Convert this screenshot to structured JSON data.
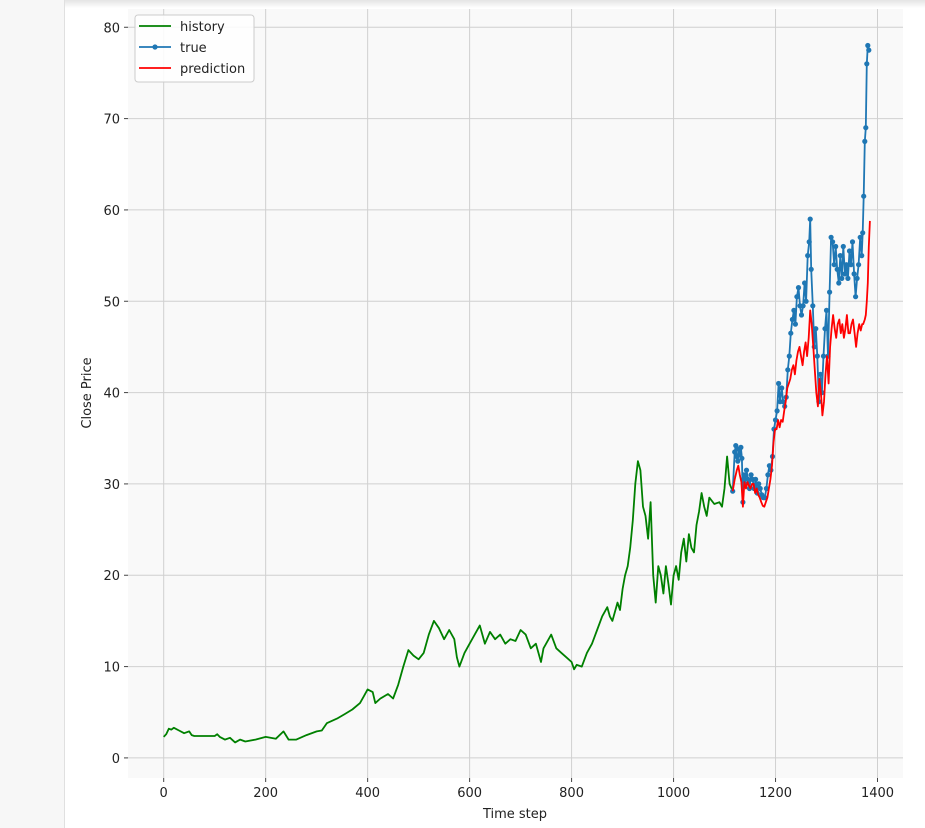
{
  "chart_data": {
    "type": "line",
    "xlabel": "Time step",
    "ylabel": "Close Price",
    "xlim": [
      -70,
      1450
    ],
    "ylim": [
      -2.2,
      82
    ],
    "xticks": [
      0,
      200,
      400,
      600,
      800,
      1000,
      1200,
      1400
    ],
    "yticks": [
      0,
      10,
      20,
      30,
      40,
      50,
      60,
      70,
      80
    ],
    "grid": true,
    "legend": "top-left",
    "series": [
      {
        "name": "history",
        "color": "#008000",
        "marker": "none",
        "points": [
          [
            0,
            2.3
          ],
          [
            5,
            2.6
          ],
          [
            10,
            3.2
          ],
          [
            15,
            3.1
          ],
          [
            20,
            3.3
          ],
          [
            30,
            3.0
          ],
          [
            40,
            2.7
          ],
          [
            50,
            2.9
          ],
          [
            55,
            2.5
          ],
          [
            60,
            2.4
          ],
          [
            80,
            2.4
          ],
          [
            100,
            2.4
          ],
          [
            105,
            2.6
          ],
          [
            110,
            2.3
          ],
          [
            120,
            2.0
          ],
          [
            130,
            2.2
          ],
          [
            140,
            1.7
          ],
          [
            150,
            2.0
          ],
          [
            160,
            1.8
          ],
          [
            180,
            2.0
          ],
          [
            200,
            2.3
          ],
          [
            220,
            2.1
          ],
          [
            235,
            2.9
          ],
          [
            245,
            2.0
          ],
          [
            260,
            2.0
          ],
          [
            280,
            2.5
          ],
          [
            300,
            2.9
          ],
          [
            310,
            3.0
          ],
          [
            320,
            3.8
          ],
          [
            340,
            4.3
          ],
          [
            355,
            4.8
          ],
          [
            370,
            5.3
          ],
          [
            385,
            6.0
          ],
          [
            392,
            6.7
          ],
          [
            400,
            7.5
          ],
          [
            410,
            7.2
          ],
          [
            415,
            6.0
          ],
          [
            425,
            6.5
          ],
          [
            440,
            7.0
          ],
          [
            450,
            6.5
          ],
          [
            460,
            8.0
          ],
          [
            470,
            10.0
          ],
          [
            480,
            11.8
          ],
          [
            490,
            11.2
          ],
          [
            500,
            10.8
          ],
          [
            510,
            11.5
          ],
          [
            520,
            13.5
          ],
          [
            530,
            15.0
          ],
          [
            540,
            14.2
          ],
          [
            550,
            13.0
          ],
          [
            560,
            14.0
          ],
          [
            570,
            13.0
          ],
          [
            575,
            11.0
          ],
          [
            580,
            10.0
          ],
          [
            590,
            11.5
          ],
          [
            600,
            12.5
          ],
          [
            610,
            13.5
          ],
          [
            620,
            14.5
          ],
          [
            630,
            12.5
          ],
          [
            640,
            13.8
          ],
          [
            650,
            13.0
          ],
          [
            660,
            13.5
          ],
          [
            670,
            12.5
          ],
          [
            680,
            13.0
          ],
          [
            690,
            12.8
          ],
          [
            700,
            14.0
          ],
          [
            710,
            13.5
          ],
          [
            720,
            12.0
          ],
          [
            730,
            12.5
          ],
          [
            740,
            10.5
          ],
          [
            745,
            12.0
          ],
          [
            750,
            12.5
          ],
          [
            760,
            13.5
          ],
          [
            770,
            12.0
          ],
          [
            780,
            11.5
          ],
          [
            790,
            11.0
          ],
          [
            800,
            10.5
          ],
          [
            805,
            9.7
          ],
          [
            810,
            10.2
          ],
          [
            820,
            10.0
          ],
          [
            830,
            11.5
          ],
          [
            840,
            12.5
          ],
          [
            850,
            14.0
          ],
          [
            860,
            15.5
          ],
          [
            870,
            16.5
          ],
          [
            875,
            15.5
          ],
          [
            880,
            15.0
          ],
          [
            890,
            17.0
          ],
          [
            895,
            16.2
          ],
          [
            900,
            18.5
          ],
          [
            905,
            20.0
          ],
          [
            910,
            21.0
          ],
          [
            915,
            23.0
          ],
          [
            920,
            26.0
          ],
          [
            925,
            30.0
          ],
          [
            930,
            32.5
          ],
          [
            935,
            31.5
          ],
          [
            940,
            27.5
          ],
          [
            945,
            26.5
          ],
          [
            950,
            24.0
          ],
          [
            955,
            28.0
          ],
          [
            960,
            20.0
          ],
          [
            965,
            17.0
          ],
          [
            970,
            21.0
          ],
          [
            975,
            20.0
          ],
          [
            980,
            18.0
          ],
          [
            985,
            21.0
          ],
          [
            990,
            19.0
          ],
          [
            995,
            16.8
          ],
          [
            1000,
            20.0
          ],
          [
            1005,
            21.0
          ],
          [
            1010,
            19.5
          ],
          [
            1015,
            22.5
          ],
          [
            1020,
            24.0
          ],
          [
            1025,
            21.5
          ],
          [
            1030,
            24.5
          ],
          [
            1035,
            23.0
          ],
          [
            1040,
            22.5
          ],
          [
            1045,
            25.5
          ],
          [
            1050,
            27.0
          ],
          [
            1055,
            29.0
          ],
          [
            1060,
            27.5
          ],
          [
            1065,
            26.5
          ],
          [
            1070,
            28.5
          ],
          [
            1080,
            27.8
          ],
          [
            1090,
            28.0
          ],
          [
            1095,
            27.5
          ],
          [
            1100,
            29.5
          ],
          [
            1105,
            33.0
          ],
          [
            1110,
            30.0
          ],
          [
            1116,
            29.2
          ]
        ]
      },
      {
        "name": "true",
        "color": "#1f77b4",
        "marker": "dot",
        "points": [
          [
            1116,
            29.2
          ],
          [
            1120,
            33.5
          ],
          [
            1122,
            34.2
          ],
          [
            1124,
            33.0
          ],
          [
            1126,
            32.5
          ],
          [
            1128,
            33.8
          ],
          [
            1130,
            33.2
          ],
          [
            1132,
            34.0
          ],
          [
            1134,
            32.8
          ],
          [
            1136,
            28.0
          ],
          [
            1138,
            31.0
          ],
          [
            1140,
            30.0
          ],
          [
            1143,
            31.5
          ],
          [
            1146,
            30.5
          ],
          [
            1149,
            29.5
          ],
          [
            1152,
            31.0
          ],
          [
            1155,
            30.5
          ],
          [
            1158,
            29.5
          ],
          [
            1161,
            30.5
          ],
          [
            1164,
            29.0
          ],
          [
            1167,
            30.0
          ],
          [
            1170,
            29.5
          ],
          [
            1173,
            28.8
          ],
          [
            1176,
            28.5
          ],
          [
            1179,
            28.5
          ],
          [
            1182,
            29.5
          ],
          [
            1185,
            31.0
          ],
          [
            1188,
            32.0
          ],
          [
            1191,
            31.5
          ],
          [
            1194,
            33.0
          ],
          [
            1197,
            36.0
          ],
          [
            1200,
            37.0
          ],
          [
            1203,
            38.0
          ],
          [
            1206,
            41.0
          ],
          [
            1209,
            39.0
          ],
          [
            1212,
            40.5
          ],
          [
            1215,
            39.0
          ],
          [
            1218,
            38.5
          ],
          [
            1221,
            39.5
          ],
          [
            1224,
            42.5
          ],
          [
            1227,
            44.0
          ],
          [
            1230,
            46.5
          ],
          [
            1233,
            48.0
          ],
          [
            1236,
            49.0
          ],
          [
            1239,
            47.5
          ],
          [
            1242,
            50.5
          ],
          [
            1245,
            51.5
          ],
          [
            1248,
            49.5
          ],
          [
            1251,
            48.5
          ],
          [
            1254,
            49.5
          ],
          [
            1257,
            52.0
          ],
          [
            1260,
            50.0
          ],
          [
            1263,
            55.0
          ],
          [
            1266,
            56.5
          ],
          [
            1268,
            59.0
          ],
          [
            1270,
            53.5
          ],
          [
            1273,
            49.5
          ],
          [
            1276,
            45.0
          ],
          [
            1279,
            47.0
          ],
          [
            1282,
            44.0
          ],
          [
            1285,
            39.0
          ],
          [
            1288,
            42.0
          ],
          [
            1291,
            40.0
          ],
          [
            1294,
            44.0
          ],
          [
            1297,
            47.0
          ],
          [
            1300,
            49.0
          ],
          [
            1303,
            44.0
          ],
          [
            1306,
            51.0
          ],
          [
            1309,
            57.0
          ],
          [
            1312,
            56.5
          ],
          [
            1315,
            54.0
          ],
          [
            1318,
            56.0
          ],
          [
            1321,
            53.5
          ],
          [
            1324,
            52.0
          ],
          [
            1327,
            55.0
          ],
          [
            1330,
            52.5
          ],
          [
            1333,
            56.0
          ],
          [
            1336,
            53.0
          ],
          [
            1339,
            54.0
          ],
          [
            1342,
            52.5
          ],
          [
            1345,
            55.5
          ],
          [
            1348,
            54.0
          ],
          [
            1351,
            56.5
          ],
          [
            1354,
            53.0
          ],
          [
            1357,
            50.5
          ],
          [
            1360,
            52.5
          ],
          [
            1363,
            54.0
          ],
          [
            1366,
            57.0
          ],
          [
            1369,
            55.0
          ],
          [
            1371,
            57.5
          ],
          [
            1373,
            61.5
          ],
          [
            1375,
            67.5
          ],
          [
            1377,
            69.0
          ],
          [
            1379,
            76.0
          ],
          [
            1381,
            78.0
          ],
          [
            1383,
            77.5
          ]
        ]
      },
      {
        "name": "prediction",
        "color": "#ff0000",
        "marker": "none",
        "points": [
          [
            1116,
            29.2
          ],
          [
            1120,
            30.5
          ],
          [
            1124,
            31.5
          ],
          [
            1127,
            32.0
          ],
          [
            1130,
            31.0
          ],
          [
            1133,
            30.2
          ],
          [
            1136,
            27.5
          ],
          [
            1139,
            30.2
          ],
          [
            1142,
            29.5
          ],
          [
            1145,
            30.2
          ],
          [
            1148,
            29.8
          ],
          [
            1151,
            29.5
          ],
          [
            1154,
            30.0
          ],
          [
            1157,
            30.0
          ],
          [
            1160,
            29.0
          ],
          [
            1163,
            29.5
          ],
          [
            1166,
            28.8
          ],
          [
            1169,
            28.5
          ],
          [
            1172,
            28.0
          ],
          [
            1175,
            27.6
          ],
          [
            1178,
            27.5
          ],
          [
            1181,
            28.0
          ],
          [
            1184,
            28.5
          ],
          [
            1187,
            29.5
          ],
          [
            1190,
            30.5
          ],
          [
            1193,
            32.0
          ],
          [
            1196,
            34.5
          ],
          [
            1199,
            36.0
          ],
          [
            1202,
            36.0
          ],
          [
            1205,
            37.0
          ],
          [
            1208,
            36.2
          ],
          [
            1211,
            37.0
          ],
          [
            1214,
            36.8
          ],
          [
            1217,
            38.0
          ],
          [
            1220,
            39.0
          ],
          [
            1223,
            40.5
          ],
          [
            1226,
            41.0
          ],
          [
            1229,
            41.5
          ],
          [
            1232,
            42.5
          ],
          [
            1235,
            43.0
          ],
          [
            1238,
            42.0
          ],
          [
            1241,
            43.5
          ],
          [
            1244,
            44.5
          ],
          [
            1247,
            45.0
          ],
          [
            1250,
            44.0
          ],
          [
            1253,
            43.0
          ],
          [
            1256,
            44.5
          ],
          [
            1259,
            45.5
          ],
          [
            1262,
            44.0
          ],
          [
            1265,
            46.0
          ],
          [
            1268,
            49.0
          ],
          [
            1271,
            47.5
          ],
          [
            1274,
            45.0
          ],
          [
            1277,
            42.5
          ],
          [
            1280,
            40.0
          ],
          [
            1283,
            38.5
          ],
          [
            1286,
            41.5
          ],
          [
            1289,
            40.0
          ],
          [
            1292,
            37.5
          ],
          [
            1295,
            39.0
          ],
          [
            1298,
            42.0
          ],
          [
            1301,
            44.0
          ],
          [
            1304,
            41.0
          ],
          [
            1307,
            45.0
          ],
          [
            1310,
            47.0
          ],
          [
            1313,
            48.5
          ],
          [
            1316,
            47.0
          ],
          [
            1319,
            46.0
          ],
          [
            1322,
            47.5
          ],
          [
            1325,
            48.0
          ],
          [
            1328,
            46.5
          ],
          [
            1331,
            47.5
          ],
          [
            1334,
            46.0
          ],
          [
            1337,
            47.0
          ],
          [
            1340,
            48.5
          ],
          [
            1343,
            46.5
          ],
          [
            1346,
            46.5
          ],
          [
            1349,
            47.5
          ],
          [
            1352,
            48.0
          ],
          [
            1355,
            46.5
          ],
          [
            1358,
            45.0
          ],
          [
            1361,
            46.5
          ],
          [
            1364,
            47.5
          ],
          [
            1367,
            46.8
          ],
          [
            1370,
            47.5
          ],
          [
            1372,
            47.5
          ],
          [
            1375,
            48.0
          ],
          [
            1377,
            48.5
          ],
          [
            1379,
            50.0
          ],
          [
            1381,
            52.0
          ],
          [
            1383,
            56.0
          ],
          [
            1385,
            58.8
          ]
        ]
      }
    ]
  }
}
